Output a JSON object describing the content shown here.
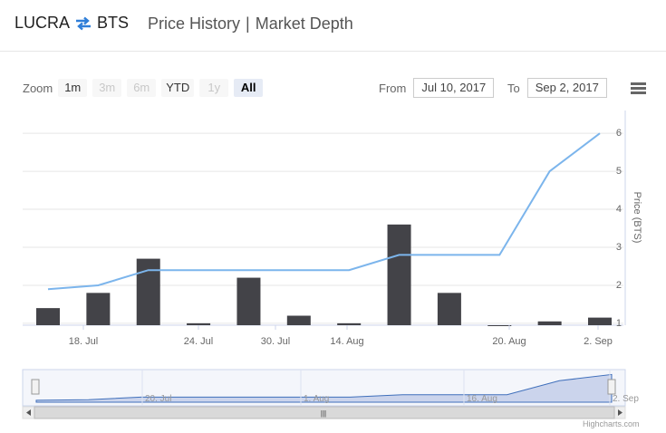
{
  "header": {
    "base": "LUCRA",
    "quote": "BTS",
    "tabs": [
      "Price History",
      "Market Depth"
    ],
    "separator": "|"
  },
  "toolbar": {
    "zoom_label": "Zoom",
    "buttons": [
      {
        "label": "1m",
        "state": "normal"
      },
      {
        "label": "3m",
        "state": "disabled"
      },
      {
        "label": "6m",
        "state": "disabled"
      },
      {
        "label": "YTD",
        "state": "normal"
      },
      {
        "label": "1y",
        "state": "disabled"
      },
      {
        "label": "All",
        "state": "active"
      }
    ],
    "from_label": "From",
    "from_value": "Jul 10, 2017",
    "to_label": "To",
    "to_value": "Sep 2, 2017"
  },
  "colors": {
    "line": "#7cb5ec",
    "bar": "#434348",
    "navigator_fill": "#cbd4ec",
    "swap_icon": "#2f7ed8"
  },
  "chart_data": {
    "type": "bar",
    "x_ticks": [
      "18. Jul",
      "24. Jul",
      "30. Jul",
      "14. Aug",
      "20. Aug",
      "2. Sep"
    ],
    "y_axis": {
      "label": "Price (BTS)",
      "ticks": [
        1,
        2,
        3,
        4,
        5,
        6
      ],
      "range": [
        0.95,
        6.6
      ],
      "position": "right"
    },
    "series": [
      {
        "type": "line",
        "values": [
          1.9,
          2.0,
          2.4,
          2.4,
          2.4,
          2.4,
          2.4,
          2.8,
          2.8,
          2.8,
          5.0,
          6.0
        ]
      },
      {
        "type": "column",
        "values": [
          1.4,
          1.8,
          2.7,
          1.0,
          2.2,
          1.2,
          1.0,
          3.6,
          1.8,
          0.95,
          1.05,
          1.15
        ]
      }
    ],
    "navigator": {
      "ticks": [
        "20. Jul",
        "1. Aug",
        "16. Aug",
        "2. Sep"
      ],
      "scrollbar_grip": "|||"
    }
  },
  "credits": "Highcharts.com"
}
